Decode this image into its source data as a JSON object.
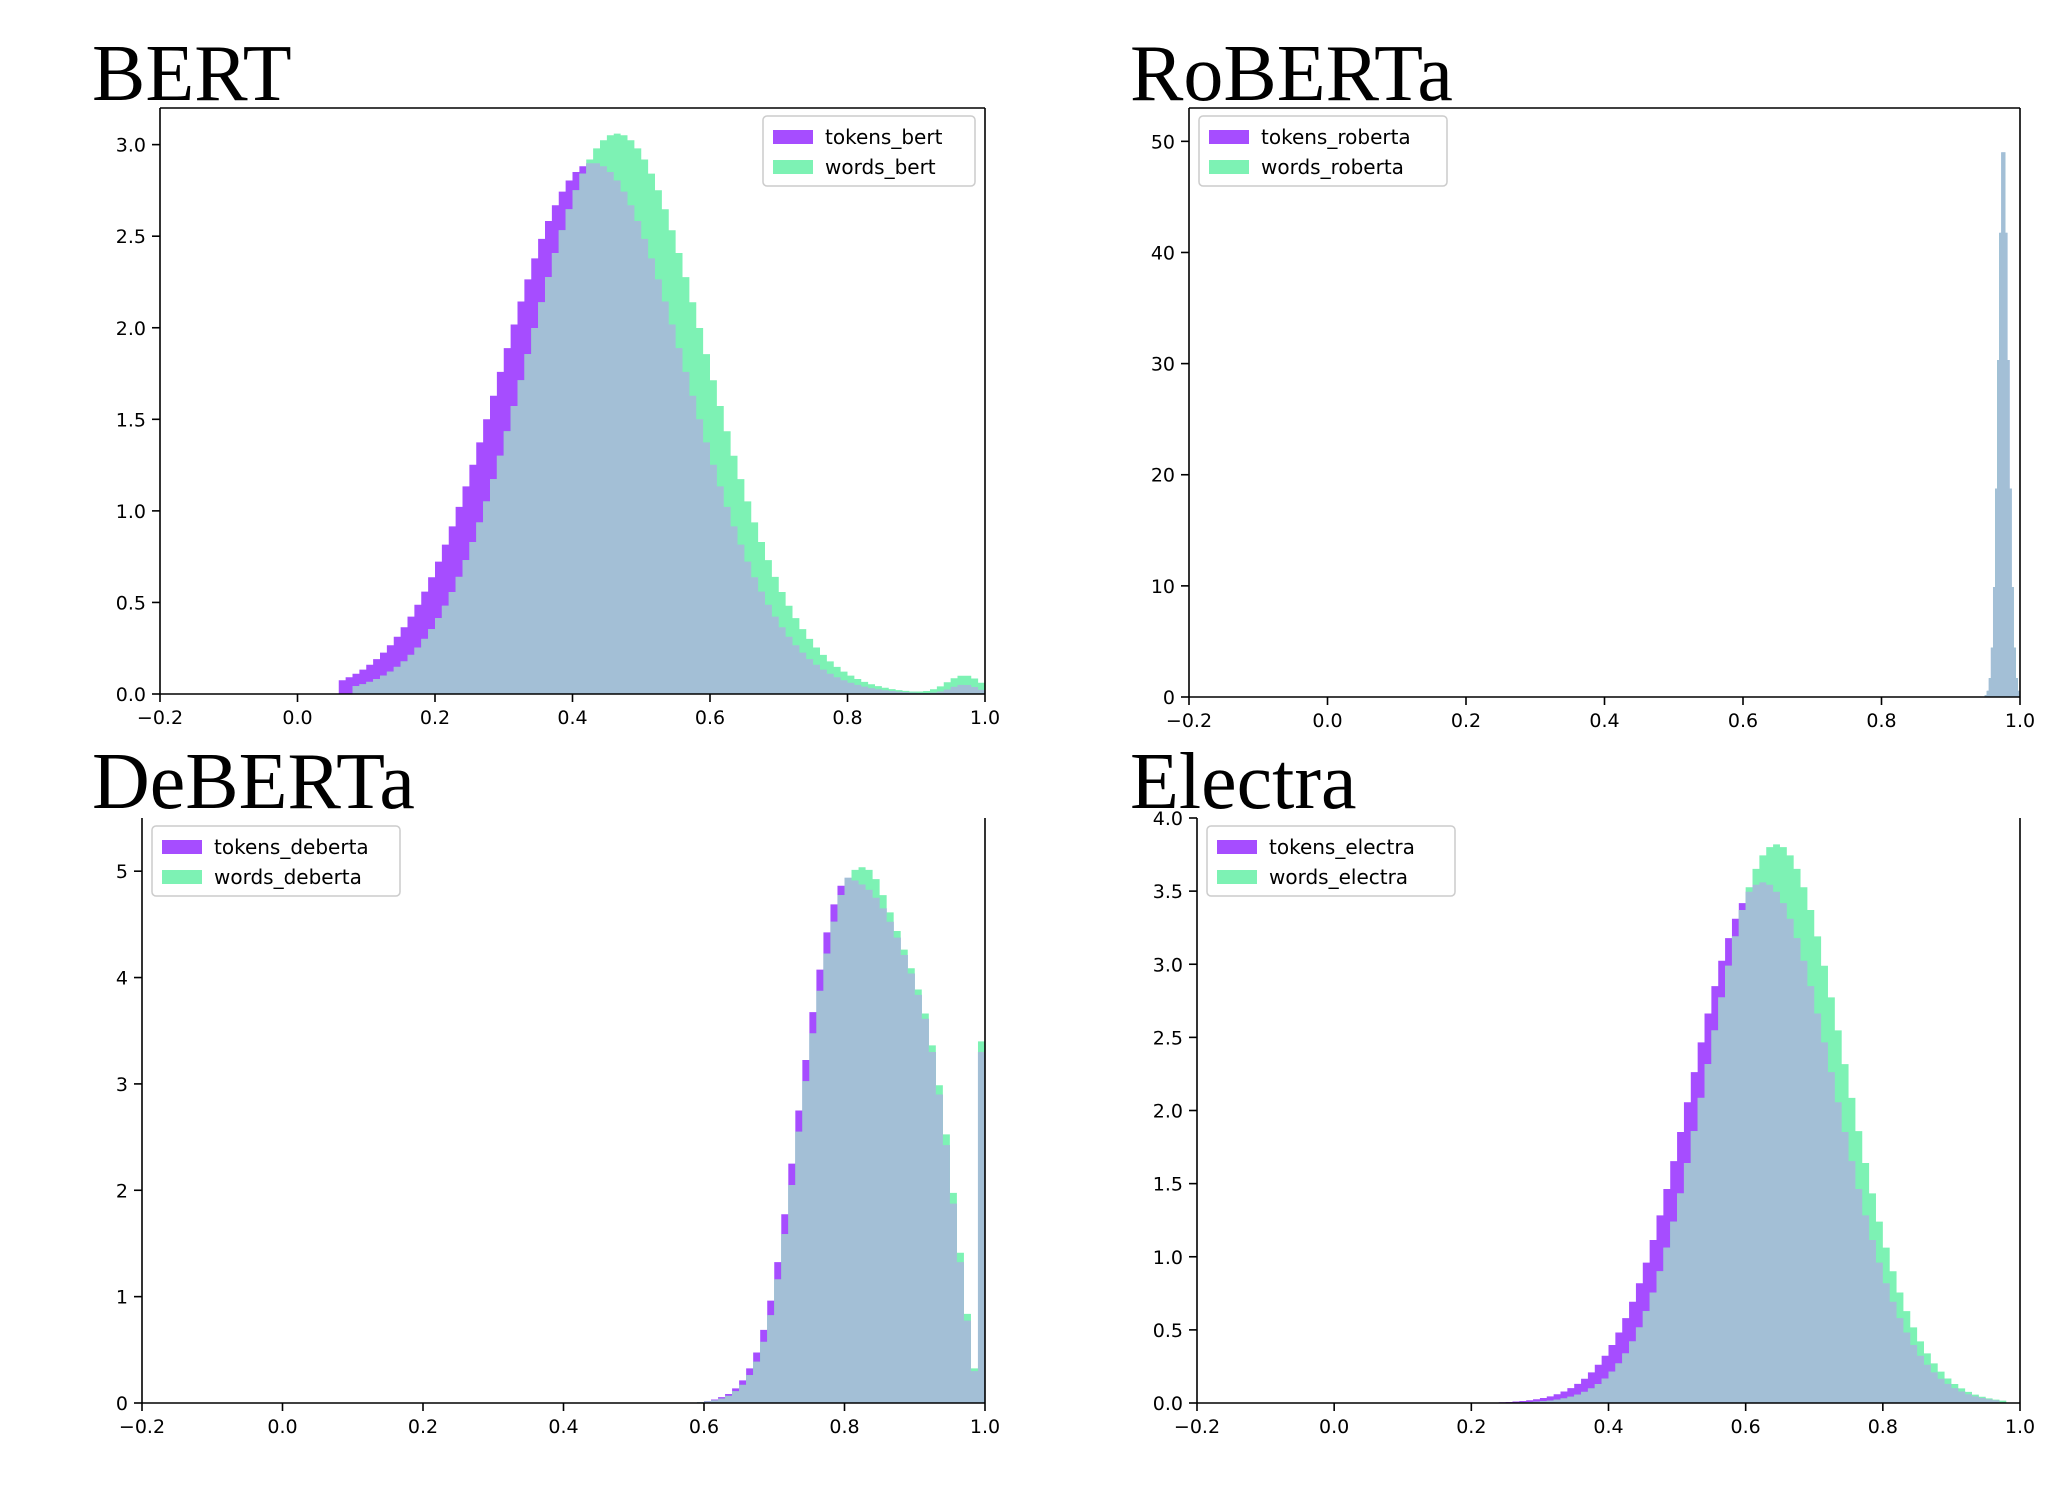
{
  "colors": {
    "tokens": "#a64dff",
    "words": "#7df2b4",
    "overlap": "#a3bfd6"
  },
  "chart_data": [
    {
      "type": "area",
      "title": "BERT",
      "xlim": [
        -0.2,
        1.0
      ],
      "ylim": [
        0,
        3.2
      ],
      "xticks": [
        -0.2,
        0.0,
        0.2,
        0.4,
        0.6,
        0.8,
        1.0
      ],
      "xtick_labels": [
        "−0.2",
        "0.0",
        "0.2",
        "0.4",
        "0.6",
        "0.8",
        "1.0"
      ],
      "yticks": [
        0,
        0.5,
        1.0,
        1.5,
        2.0,
        2.5,
        3.0
      ],
      "ytick_labels": [
        "0.0",
        "0.5",
        "1.0",
        "1.5",
        "2.0",
        "2.5",
        "3.0"
      ],
      "legend_position": "top-right",
      "series": [
        {
          "name": "tokens_bert",
          "color_key": "tokens",
          "mode": "gauss",
          "params": {
            "mu": 0.43,
            "sigma": 0.135,
            "peak": 2.9,
            "start": 0.06,
            "end": 1.0,
            "tail": [
              0.97,
              0.02,
              0.05
            ]
          }
        },
        {
          "name": "words_bert",
          "color_key": "words",
          "mode": "gauss",
          "params": {
            "mu": 0.465,
            "sigma": 0.13,
            "peak": 3.06,
            "start": 0.08,
            "end": 1.0,
            "tail": [
              0.97,
              0.025,
              0.1
            ]
          }
        }
      ]
    },
    {
      "type": "area",
      "title": "RoBERTa",
      "xlim": [
        -0.2,
        1.0
      ],
      "ylim": [
        0,
        53
      ],
      "xticks": [
        -0.2,
        0.0,
        0.2,
        0.4,
        0.6,
        0.8,
        1.0
      ],
      "xtick_labels": [
        "−0.2",
        "0.0",
        "0.2",
        "0.4",
        "0.6",
        "0.8",
        "1.0"
      ],
      "yticks": [
        0,
        10,
        20,
        30,
        40,
        50
      ],
      "ytick_labels": [
        "0",
        "10",
        "20",
        "30",
        "40",
        "50"
      ],
      "legend_position": "top-left",
      "series": [
        {
          "name": "tokens_roberta",
          "color_key": "tokens",
          "mode": "gauss",
          "params": {
            "mu": 0.976,
            "sigma": 0.0075,
            "peak": 50,
            "start": 0.9,
            "end": 1.0
          }
        },
        {
          "name": "words_roberta",
          "color_key": "words",
          "mode": "gauss",
          "params": {
            "mu": 0.976,
            "sigma": 0.0075,
            "peak": 50,
            "start": 0.9,
            "end": 1.0
          }
        }
      ]
    },
    {
      "type": "area",
      "title": "DeBERTa",
      "xlim": [
        -0.2,
        1.0
      ],
      "ylim": [
        0,
        5.5
      ],
      "xticks": [
        -0.2,
        0.0,
        0.2,
        0.4,
        0.6,
        0.8,
        1.0
      ],
      "xtick_labels": [
        "−0.2",
        "0.0",
        "0.2",
        "0.4",
        "0.6",
        "0.8",
        "1.0"
      ],
      "yticks": [
        0,
        1,
        2,
        3,
        4,
        5
      ],
      "ytick_labels": [
        "0",
        "1",
        "2",
        "3",
        "4",
        "5"
      ],
      "legend_position": "top-left",
      "series": [
        {
          "name": "tokens_deberta",
          "color_key": "tokens",
          "mode": "points",
          "points": [
            [
              0.58,
              0
            ],
            [
              0.6,
              0.01
            ],
            [
              0.62,
              0.04
            ],
            [
              0.64,
              0.1
            ],
            [
              0.66,
              0.25
            ],
            [
              0.68,
              0.55
            ],
            [
              0.7,
              1.1
            ],
            [
              0.72,
              2.0
            ],
            [
              0.74,
              3.0
            ],
            [
              0.76,
              3.9
            ],
            [
              0.78,
              4.6
            ],
            [
              0.8,
              4.95
            ],
            [
              0.82,
              4.9
            ],
            [
              0.84,
              4.8
            ],
            [
              0.86,
              4.6
            ],
            [
              0.88,
              4.3
            ],
            [
              0.9,
              3.95
            ],
            [
              0.92,
              3.5
            ],
            [
              0.94,
              2.7
            ],
            [
              0.96,
              1.6
            ],
            [
              0.98,
              0.5
            ],
            [
              0.99,
              0.1
            ],
            [
              0.995,
              3.3
            ],
            [
              1.0,
              3.3
            ]
          ]
        },
        {
          "name": "words_deberta",
          "color_key": "words",
          "mode": "points",
          "points": [
            [
              0.58,
              0
            ],
            [
              0.6,
              0.01
            ],
            [
              0.62,
              0.03
            ],
            [
              0.64,
              0.08
            ],
            [
              0.66,
              0.2
            ],
            [
              0.68,
              0.45
            ],
            [
              0.7,
              0.95
            ],
            [
              0.72,
              1.8
            ],
            [
              0.74,
              2.8
            ],
            [
              0.76,
              3.7
            ],
            [
              0.78,
              4.4
            ],
            [
              0.8,
              4.9
            ],
            [
              0.82,
              5.05
            ],
            [
              0.84,
              5.0
            ],
            [
              0.86,
              4.7
            ],
            [
              0.88,
              4.35
            ],
            [
              0.9,
              4.0
            ],
            [
              0.92,
              3.55
            ],
            [
              0.94,
              2.8
            ],
            [
              0.96,
              1.7
            ],
            [
              0.98,
              0.55
            ],
            [
              0.99,
              0.1
            ],
            [
              0.995,
              3.4
            ],
            [
              1.0,
              3.4
            ]
          ]
        }
      ]
    },
    {
      "type": "area",
      "title": "Electra",
      "xlim": [
        -0.2,
        1.0
      ],
      "ylim": [
        0,
        4.0
      ],
      "xticks": [
        -0.2,
        0.0,
        0.2,
        0.4,
        0.6,
        0.8,
        1.0
      ],
      "xtick_labels": [
        "−0.2",
        "0.0",
        "0.2",
        "0.4",
        "0.6",
        "0.8",
        "1.0"
      ],
      "yticks": [
        0,
        0.5,
        1.0,
        1.5,
        2.0,
        2.5,
        3.0,
        3.5,
        4.0
      ],
      "ytick_labels": [
        "0.0",
        "0.5",
        "1.0",
        "1.5",
        "2.0",
        "2.5",
        "3.0",
        "3.5",
        "4.0"
      ],
      "legend_position": "top-left",
      "series": [
        {
          "name": "tokens_electra",
          "color_key": "tokens",
          "mode": "gauss",
          "params": {
            "mu": 0.625,
            "sigma": 0.105,
            "peak": 3.56,
            "start": 0.14,
            "end": 0.97
          }
        },
        {
          "name": "words_electra",
          "color_key": "words",
          "mode": "gauss",
          "params": {
            "mu": 0.645,
            "sigma": 0.1,
            "peak": 3.82,
            "start": 0.15,
            "end": 0.98
          }
        }
      ]
    }
  ]
}
